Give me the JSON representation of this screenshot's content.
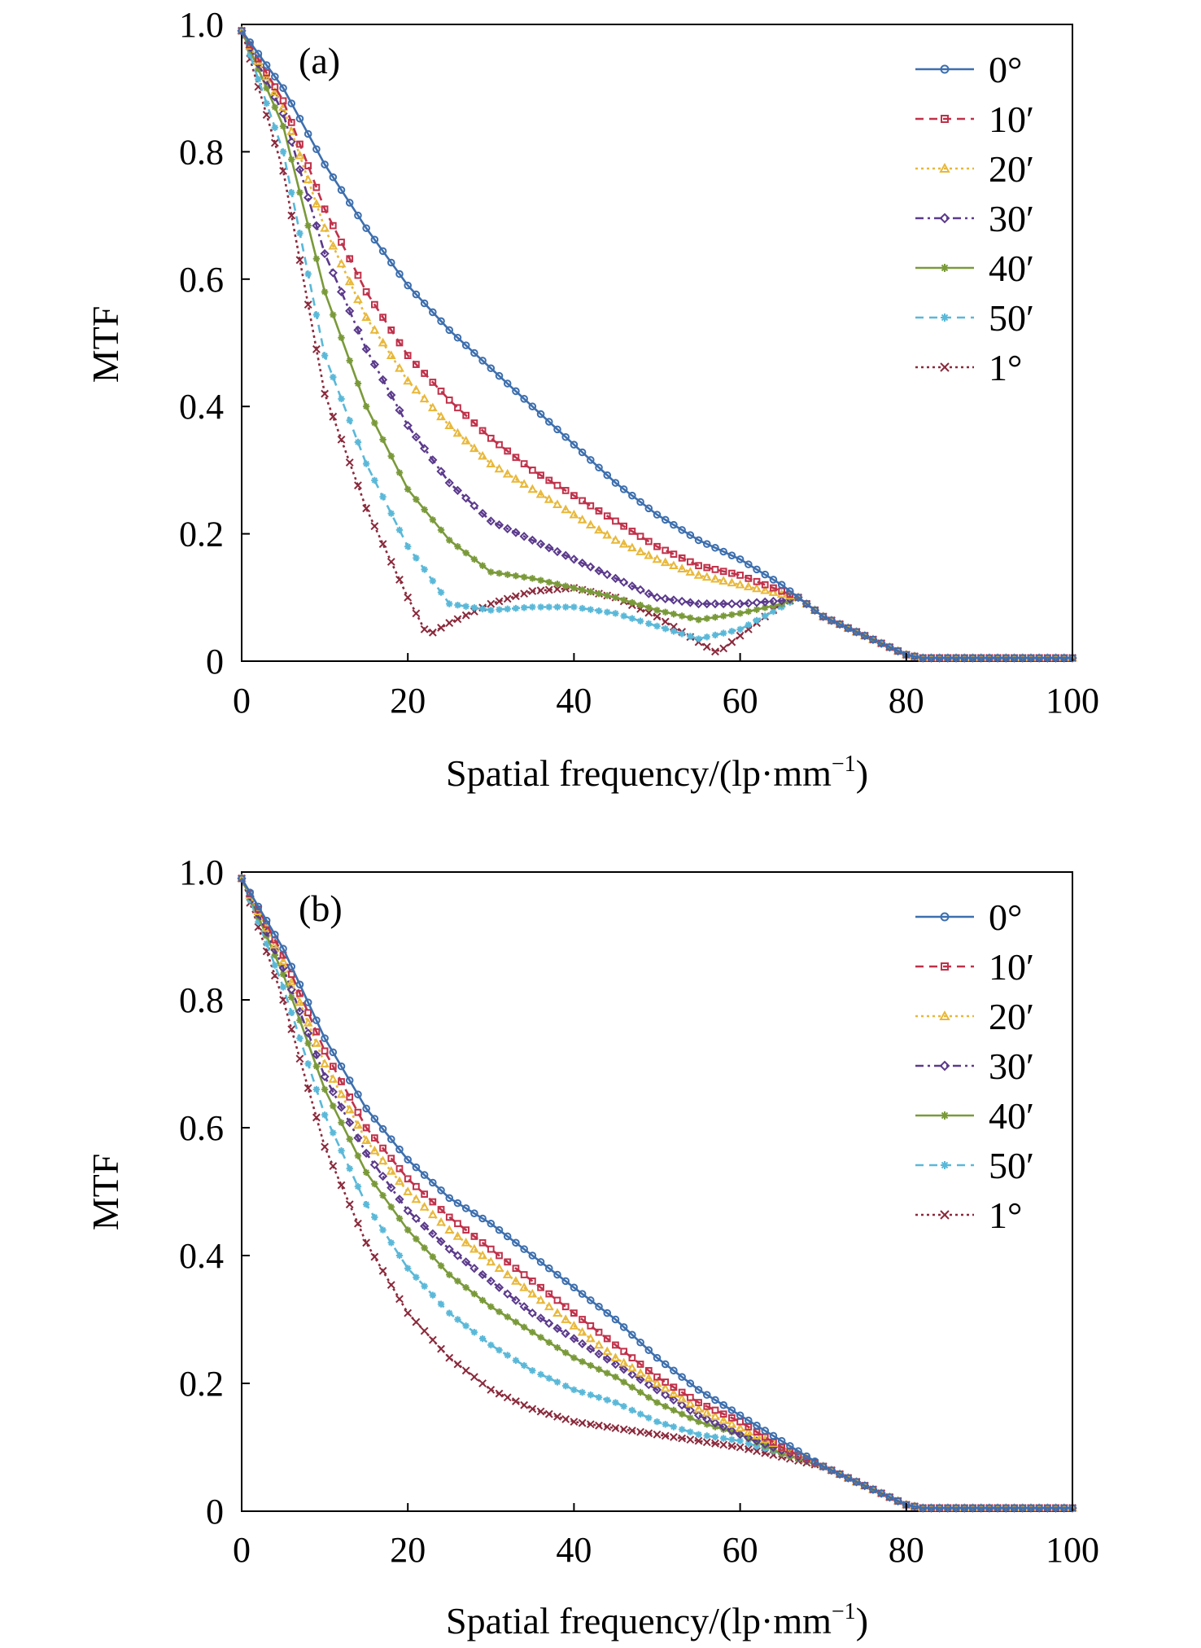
{
  "chart_data": [
    {
      "type": "line",
      "panel_label": "(a)",
      "xlabel": "Spatial frequency/(lp·mm",
      "xlabel_sup": "−1",
      "xlabel_end": ")",
      "ylabel": "MTF",
      "xlim": [
        0,
        100
      ],
      "ylim": [
        0,
        1.0
      ],
      "x_ticks": [
        0,
        20,
        40,
        60,
        80,
        100
      ],
      "x_tick_labels": [
        "0",
        "20",
        "40",
        "60",
        "80",
        "100"
      ],
      "y_ticks": [
        0,
        0.2,
        0.4,
        0.6,
        0.8,
        1.0
      ],
      "y_tick_labels": [
        "0",
        "0.2",
        "0.4",
        "0.6",
        "0.8",
        "1.0"
      ],
      "grid": false,
      "legend_position": "top-right",
      "series": [
        {
          "name": "0°",
          "color": "#3d6fae",
          "dash": "solid",
          "marker": "circle",
          "x": [
            0,
            5,
            10,
            15,
            20,
            25,
            30,
            35,
            40,
            45,
            50,
            55,
            60,
            65,
            67,
            70,
            75,
            80,
            82,
            85,
            90,
            95,
            100
          ],
          "values": [
            0.99,
            0.9,
            0.78,
            0.68,
            0.59,
            0.52,
            0.46,
            0.4,
            0.34,
            0.28,
            0.23,
            0.19,
            0.16,
            0.12,
            0.1,
            0.07,
            0.04,
            0.01,
            0.005,
            0.005,
            0.005,
            0.005,
            0.005
          ]
        },
        {
          "name": "10′",
          "color": "#c0314a",
          "dash": "dashed",
          "marker": "square",
          "x": [
            0,
            5,
            10,
            15,
            20,
            25,
            30,
            35,
            40,
            45,
            50,
            55,
            60,
            65,
            67,
            70,
            75,
            80,
            82,
            85,
            90,
            95,
            100
          ],
          "values": [
            0.99,
            0.88,
            0.71,
            0.58,
            0.48,
            0.41,
            0.35,
            0.3,
            0.26,
            0.22,
            0.18,
            0.15,
            0.135,
            0.11,
            0.1,
            0.07,
            0.04,
            0.01,
            0.005,
            0.005,
            0.005,
            0.005,
            0.005
          ]
        },
        {
          "name": "20′",
          "color": "#e8b83a",
          "dash": "dotted",
          "marker": "triangle",
          "x": [
            0,
            5,
            10,
            15,
            20,
            25,
            30,
            35,
            40,
            45,
            50,
            55,
            60,
            65,
            67,
            70,
            75,
            80,
            82,
            85,
            90,
            95,
            100
          ],
          "values": [
            0.99,
            0.87,
            0.68,
            0.54,
            0.44,
            0.37,
            0.31,
            0.27,
            0.23,
            0.19,
            0.16,
            0.135,
            0.12,
            0.105,
            0.1,
            0.07,
            0.04,
            0.01,
            0.005,
            0.005,
            0.005,
            0.005,
            0.005
          ]
        },
        {
          "name": "30′",
          "color": "#5b3a8c",
          "dash": "dashdot",
          "marker": "diamond",
          "x": [
            0,
            5,
            10,
            15,
            20,
            25,
            30,
            35,
            40,
            45,
            50,
            55,
            60,
            65,
            67,
            70,
            75,
            80,
            82,
            85,
            90,
            95,
            100
          ],
          "values": [
            0.99,
            0.86,
            0.64,
            0.49,
            0.37,
            0.28,
            0.22,
            0.19,
            0.16,
            0.13,
            0.1,
            0.09,
            0.09,
            0.095,
            0.1,
            0.07,
            0.04,
            0.01,
            0.005,
            0.005,
            0.005,
            0.005,
            0.005
          ]
        },
        {
          "name": "40′",
          "color": "#7a9a3a",
          "dash": "solid",
          "marker": "star",
          "x": [
            0,
            5,
            10,
            15,
            20,
            25,
            30,
            35,
            40,
            45,
            50,
            55,
            60,
            65,
            67,
            70,
            75,
            80,
            82,
            85,
            90,
            95,
            100
          ],
          "values": [
            0.99,
            0.84,
            0.58,
            0.4,
            0.27,
            0.19,
            0.14,
            0.13,
            0.115,
            0.1,
            0.08,
            0.065,
            0.075,
            0.09,
            0.1,
            0.07,
            0.04,
            0.01,
            0.005,
            0.005,
            0.005,
            0.005,
            0.005
          ]
        },
        {
          "name": "50′",
          "color": "#5ab8d8",
          "dash": "dashed",
          "marker": "star",
          "x": [
            0,
            5,
            10,
            15,
            20,
            25,
            30,
            35,
            40,
            45,
            50,
            55,
            60,
            65,
            67,
            70,
            75,
            80,
            82,
            85,
            90,
            95,
            100
          ],
          "values": [
            0.99,
            0.8,
            0.48,
            0.31,
            0.18,
            0.09,
            0.08,
            0.085,
            0.085,
            0.075,
            0.055,
            0.035,
            0.05,
            0.085,
            0.1,
            0.07,
            0.04,
            0.01,
            0.005,
            0.005,
            0.005,
            0.005,
            0.005
          ]
        },
        {
          "name": "1°",
          "color": "#8a2a3c",
          "dash": "dotted",
          "marker": "cross",
          "x": [
            0,
            5,
            10,
            15,
            20,
            22,
            23,
            25,
            30,
            35,
            40,
            45,
            50,
            55,
            57,
            58,
            60,
            65,
            67,
            70,
            75,
            80,
            82,
            85,
            90,
            95,
            100
          ],
          "values": [
            0.99,
            0.77,
            0.42,
            0.24,
            0.1,
            0.05,
            0.045,
            0.06,
            0.09,
            0.11,
            0.115,
            0.1,
            0.07,
            0.03,
            0.015,
            0.02,
            0.04,
            0.09,
            0.1,
            0.07,
            0.04,
            0.01,
            0.005,
            0.005,
            0.005,
            0.005,
            0.005
          ]
        }
      ]
    },
    {
      "type": "line",
      "panel_label": "(b)",
      "xlabel": "Spatial frequency/(lp·mm",
      "xlabel_sup": "−1",
      "xlabel_end": ")",
      "ylabel": "MTF",
      "xlim": [
        0,
        100
      ],
      "ylim": [
        0,
        1.0
      ],
      "x_ticks": [
        0,
        20,
        40,
        60,
        80,
        100
      ],
      "x_tick_labels": [
        "0",
        "20",
        "40",
        "60",
        "80",
        "100"
      ],
      "y_ticks": [
        0,
        0.2,
        0.4,
        0.6,
        0.8,
        1.0
      ],
      "y_tick_labels": [
        "0",
        "0.2",
        "0.4",
        "0.6",
        "0.8",
        "1.0"
      ],
      "grid": false,
      "legend_position": "top-right",
      "series": [
        {
          "name": "0°",
          "color": "#3d6fae",
          "dash": "solid",
          "marker": "circle",
          "x": [
            0,
            5,
            10,
            15,
            20,
            25,
            30,
            35,
            40,
            45,
            50,
            55,
            60,
            65,
            70,
            75,
            80,
            82,
            85,
            90,
            95,
            100
          ],
          "values": [
            0.99,
            0.88,
            0.74,
            0.63,
            0.55,
            0.49,
            0.45,
            0.4,
            0.35,
            0.3,
            0.24,
            0.19,
            0.15,
            0.11,
            0.07,
            0.04,
            0.01,
            0.005,
            0.005,
            0.005,
            0.005,
            0.005
          ]
        },
        {
          "name": "10′",
          "color": "#c0314a",
          "dash": "dashed",
          "marker": "square",
          "x": [
            0,
            5,
            10,
            15,
            20,
            25,
            30,
            35,
            40,
            45,
            50,
            55,
            60,
            65,
            70,
            75,
            80,
            82,
            85,
            90,
            95,
            100
          ],
          "values": [
            0.99,
            0.87,
            0.72,
            0.6,
            0.52,
            0.46,
            0.41,
            0.36,
            0.31,
            0.26,
            0.21,
            0.17,
            0.14,
            0.1,
            0.07,
            0.04,
            0.01,
            0.005,
            0.005,
            0.005,
            0.005,
            0.005
          ]
        },
        {
          "name": "20′",
          "color": "#e8b83a",
          "dash": "dotted",
          "marker": "triangle",
          "x": [
            0,
            5,
            10,
            15,
            20,
            25,
            30,
            35,
            40,
            45,
            50,
            55,
            60,
            65,
            70,
            75,
            80,
            82,
            85,
            90,
            95,
            100
          ],
          "values": [
            0.99,
            0.86,
            0.7,
            0.58,
            0.5,
            0.44,
            0.39,
            0.34,
            0.29,
            0.24,
            0.2,
            0.16,
            0.13,
            0.1,
            0.07,
            0.04,
            0.01,
            0.005,
            0.005,
            0.005,
            0.005,
            0.005
          ]
        },
        {
          "name": "30′",
          "color": "#5b3a8c",
          "dash": "dashdot",
          "marker": "diamond",
          "x": [
            0,
            5,
            10,
            15,
            20,
            25,
            30,
            35,
            40,
            45,
            50,
            55,
            60,
            65,
            70,
            75,
            80,
            82,
            85,
            90,
            95,
            100
          ],
          "values": [
            0.99,
            0.85,
            0.68,
            0.56,
            0.47,
            0.41,
            0.36,
            0.31,
            0.27,
            0.23,
            0.19,
            0.15,
            0.12,
            0.095,
            0.07,
            0.04,
            0.01,
            0.005,
            0.005,
            0.005,
            0.005,
            0.005
          ]
        },
        {
          "name": "40′",
          "color": "#7a9a3a",
          "dash": "solid",
          "marker": "star",
          "x": [
            0,
            5,
            10,
            15,
            20,
            25,
            30,
            35,
            40,
            45,
            50,
            55,
            60,
            65,
            70,
            75,
            80,
            82,
            85,
            90,
            95,
            100
          ],
          "values": [
            0.99,
            0.84,
            0.66,
            0.53,
            0.44,
            0.37,
            0.32,
            0.28,
            0.24,
            0.21,
            0.17,
            0.14,
            0.12,
            0.09,
            0.07,
            0.04,
            0.01,
            0.005,
            0.005,
            0.005,
            0.005,
            0.005
          ]
        },
        {
          "name": "50′",
          "color": "#5ab8d8",
          "dash": "dashed",
          "marker": "star",
          "x": [
            0,
            5,
            10,
            15,
            20,
            25,
            30,
            35,
            40,
            45,
            50,
            55,
            60,
            65,
            70,
            75,
            80,
            82,
            85,
            90,
            95,
            100
          ],
          "values": [
            0.99,
            0.82,
            0.62,
            0.48,
            0.38,
            0.31,
            0.26,
            0.22,
            0.19,
            0.17,
            0.14,
            0.12,
            0.11,
            0.09,
            0.07,
            0.04,
            0.01,
            0.005,
            0.005,
            0.005,
            0.005,
            0.005
          ]
        },
        {
          "name": "1°",
          "color": "#8a2a3c",
          "dash": "dotted",
          "marker": "cross",
          "x": [
            0,
            5,
            10,
            15,
            20,
            25,
            30,
            35,
            40,
            45,
            50,
            55,
            60,
            65,
            70,
            75,
            80,
            82,
            85,
            90,
            95,
            100
          ],
          "values": [
            0.99,
            0.8,
            0.57,
            0.42,
            0.31,
            0.24,
            0.19,
            0.16,
            0.14,
            0.13,
            0.12,
            0.11,
            0.1,
            0.085,
            0.07,
            0.04,
            0.01,
            0.005,
            0.005,
            0.005,
            0.005,
            0.005
          ]
        }
      ]
    }
  ]
}
